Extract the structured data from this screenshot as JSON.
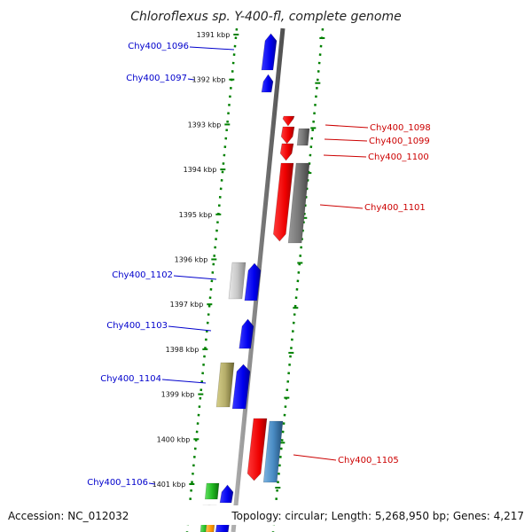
{
  "title": "Chloroflexus sp. Y-400-fl, complete genome",
  "footer": {
    "accession": "Accession: NC_012032",
    "summary": "Topology: circular; Length: 5,268,950 bp; Genes: 4,217"
  },
  "colors": {
    "axis": "#888888",
    "ruler": "#008000",
    "forward_label": "#0000cc",
    "reverse_label": "#cc0000"
  },
  "ruler_labels": [
    "1391 kbp",
    "1392 kbp",
    "1393 kbp",
    "1394 kbp",
    "1395 kbp",
    "1396 kbp",
    "1397 kbp",
    "1398 kbp",
    "1399 kbp",
    "1400 kbp",
    "1401 kbp"
  ],
  "genes": [
    {
      "name": "Chy400_1096",
      "strand": "+",
      "color": "#0000ee",
      "side": "left"
    },
    {
      "name": "Chy400_1097",
      "strand": "+",
      "color": "#0000ee",
      "side": "left"
    },
    {
      "name": "Chy400_1098",
      "strand": "-",
      "color": "#ee0000",
      "side": "right"
    },
    {
      "name": "Chy400_1099",
      "strand": "-",
      "color": "#ee0000",
      "side": "right"
    },
    {
      "name": "Chy400_1100",
      "strand": "-",
      "color": "#ee0000",
      "side": "right"
    },
    {
      "name": "Chy400_1101",
      "strand": "-",
      "color": "#ee0000",
      "side": "right"
    },
    {
      "name": "Chy400_1102",
      "strand": "+",
      "color": "#0000ee",
      "side": "left"
    },
    {
      "name": "Chy400_1103",
      "strand": "+",
      "color": "#0000ee",
      "side": "left"
    },
    {
      "name": "Chy400_1104",
      "strand": "+",
      "color": "#0000ee",
      "side": "left"
    },
    {
      "name": "Chy400_1105",
      "strand": "-",
      "color": "#ee0000",
      "side": "right"
    },
    {
      "name": "Chy400_1106",
      "strand": "+",
      "color": "#0000ee",
      "side": "left"
    }
  ],
  "features": [
    {
      "type": "gray-block",
      "color": "#777777"
    },
    {
      "type": "gray-block",
      "color": "#c8c8c8"
    },
    {
      "type": "olive-block",
      "color": "#b5ad6a"
    },
    {
      "type": "steelblue-block",
      "color": "#4a8cc4"
    },
    {
      "type": "green-block",
      "color": "#22bb22"
    },
    {
      "type": "orange-block",
      "color": "#ff9900"
    }
  ]
}
